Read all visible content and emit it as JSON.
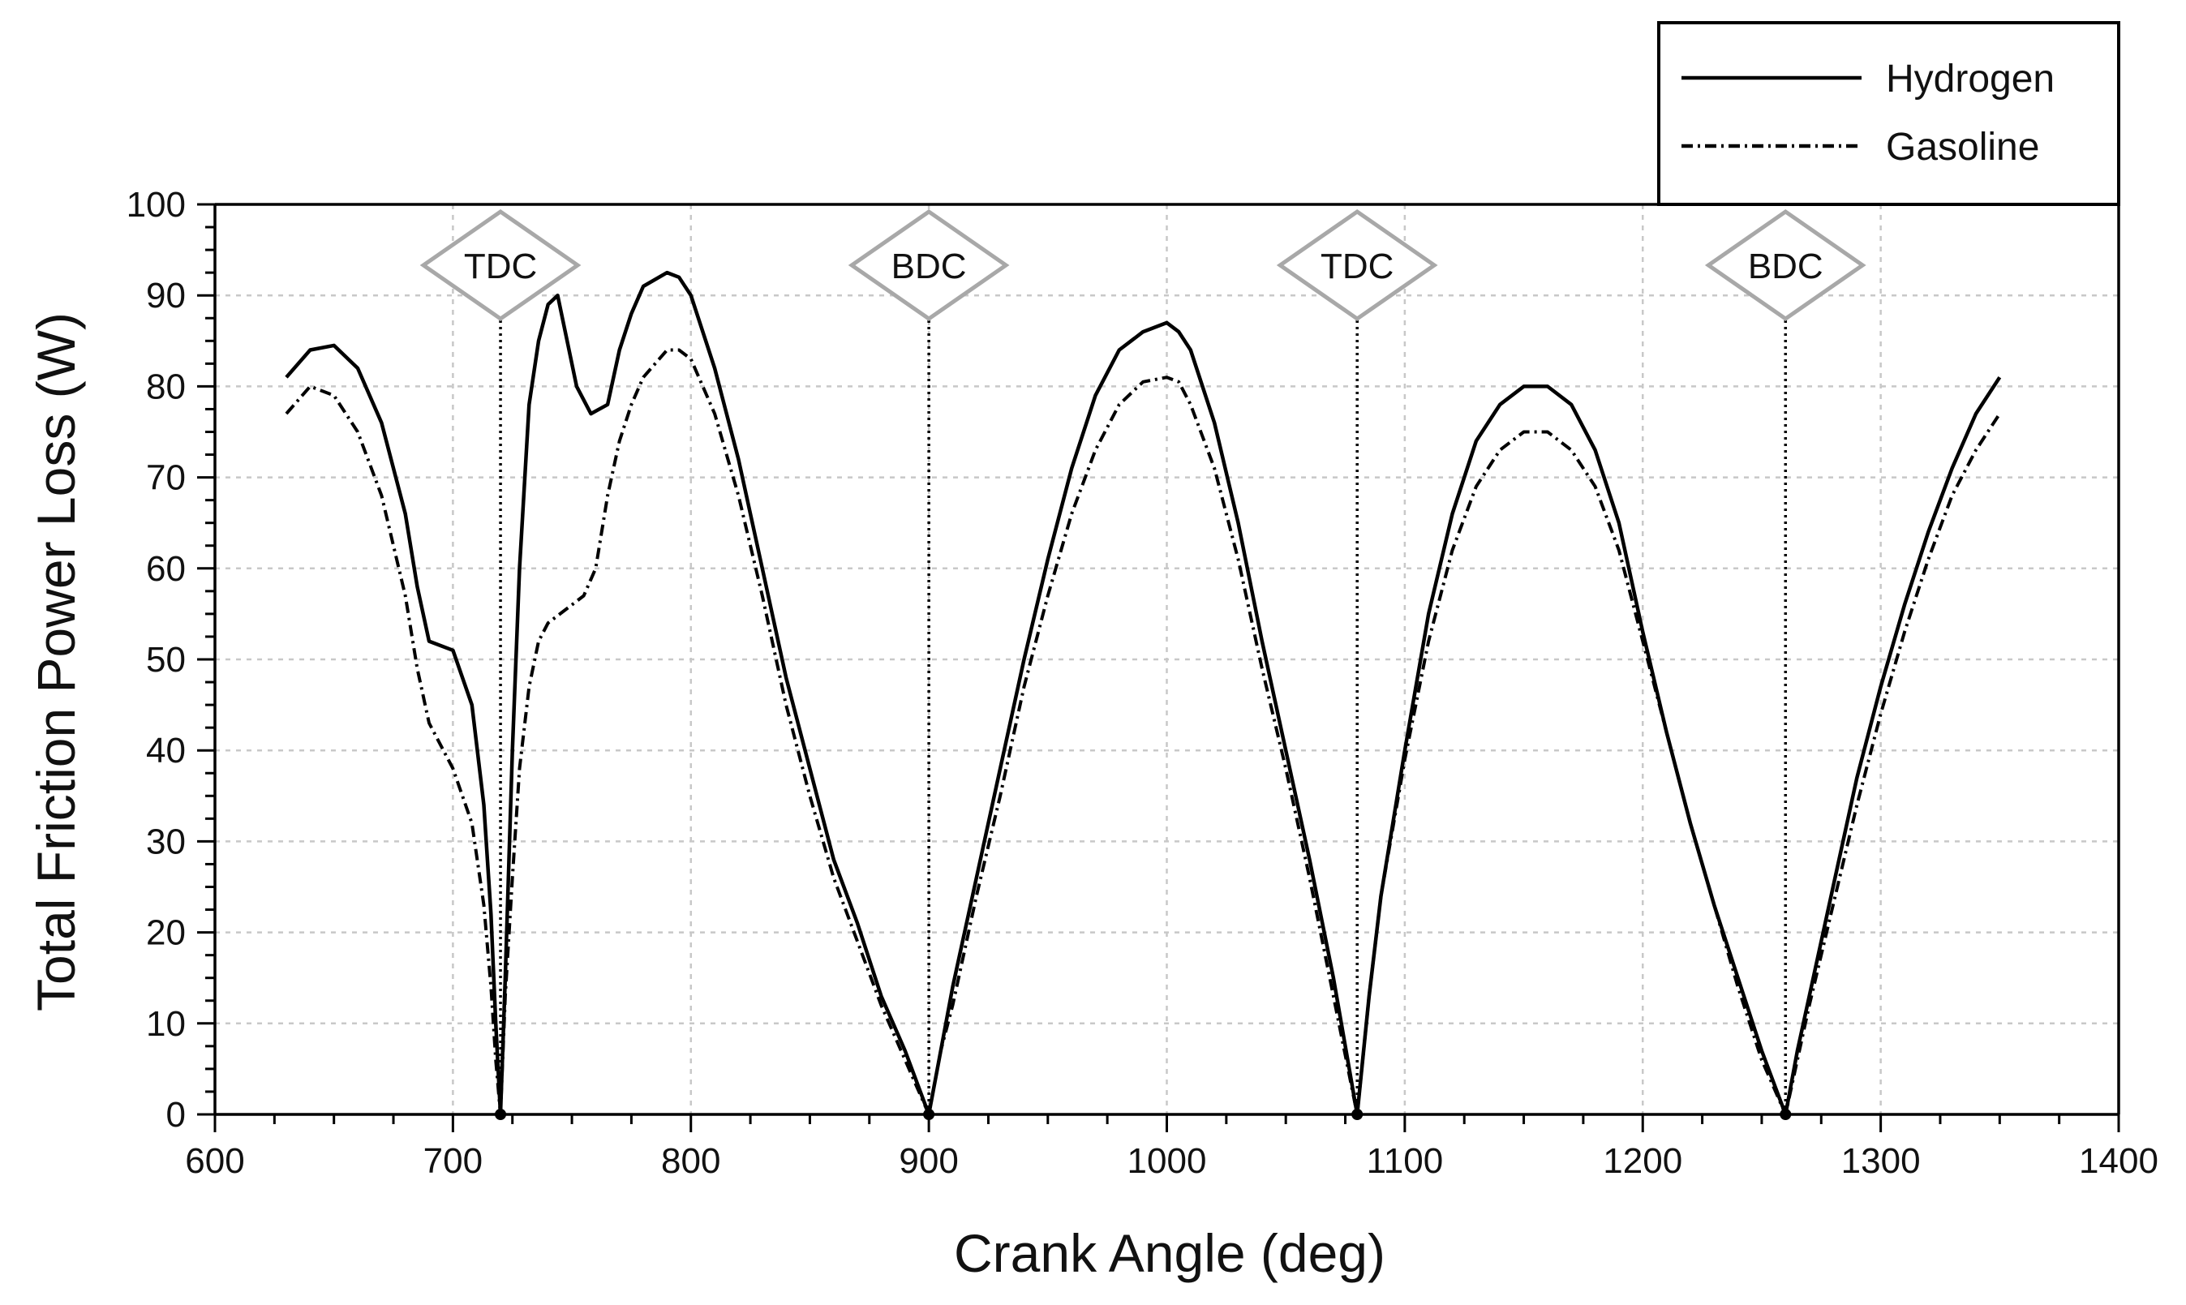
{
  "chart_data": {
    "type": "line",
    "title": "",
    "xlabel": "Crank Angle (deg)",
    "ylabel": "Total Friction Power Loss (W)",
    "xlim": [
      600,
      1400
    ],
    "ylim": [
      0,
      100
    ],
    "x_ticks": [
      "600",
      "700",
      "800",
      "900",
      "1000",
      "1100",
      "1200",
      "1300",
      "1400"
    ],
    "y_ticks": [
      "0",
      "10",
      "20",
      "30",
      "40",
      "50",
      "60",
      "70",
      "80",
      "90",
      "100"
    ],
    "grid": true,
    "legend": {
      "position": "top-right"
    },
    "markers": [
      {
        "label": "TDC",
        "x": 720
      },
      {
        "label": "BDC",
        "x": 900
      },
      {
        "label": "TDC",
        "x": 1080
      },
      {
        "label": "BDC",
        "x": 1260
      }
    ],
    "series": [
      {
        "name": "Hydrogen",
        "style": "solid",
        "color": "#000000",
        "x": [
          630,
          640,
          650,
          660,
          670,
          680,
          685,
          690,
          700,
          708,
          713,
          716,
          718,
          720,
          722,
          725,
          728,
          732,
          736,
          740,
          744,
          748,
          752,
          758,
          765,
          770,
          775,
          780,
          790,
          795,
          800,
          810,
          820,
          830,
          840,
          850,
          860,
          870,
          880,
          890,
          900,
          905,
          910,
          920,
          930,
          940,
          950,
          960,
          970,
          980,
          990,
          1000,
          1005,
          1010,
          1020,
          1030,
          1040,
          1050,
          1060,
          1070,
          1080,
          1085,
          1090,
          1100,
          1110,
          1120,
          1130,
          1140,
          1150,
          1160,
          1170,
          1180,
          1190,
          1200,
          1210,
          1220,
          1230,
          1240,
          1250,
          1260,
          1265,
          1270,
          1280,
          1290,
          1300,
          1310,
          1320,
          1330,
          1340,
          1350
        ],
        "values": [
          81,
          84,
          84.5,
          82,
          76,
          66,
          58,
          52,
          51,
          45,
          34,
          22,
          10,
          0,
          15,
          40,
          60,
          78,
          85,
          89,
          90,
          85,
          80,
          77,
          78,
          84,
          88,
          91,
          92.5,
          92,
          90,
          82,
          72,
          60,
          48,
          38,
          28,
          21,
          13,
          7,
          0,
          7,
          14,
          26,
          38,
          50,
          61,
          71,
          79,
          84,
          86,
          87,
          86,
          84,
          76,
          65,
          52,
          40,
          28,
          15,
          0,
          13,
          24,
          40,
          55,
          66,
          74,
          78,
          80,
          80,
          78,
          73,
          65,
          53,
          42,
          32,
          23,
          15,
          7,
          0,
          7,
          13,
          25,
          37,
          47,
          56,
          64,
          71,
          77,
          81
        ]
      },
      {
        "name": "Gasoline",
        "style": "dash-dot",
        "color": "#000000",
        "x": [
          630,
          640,
          650,
          660,
          670,
          680,
          685,
          690,
          700,
          708,
          713,
          716,
          718,
          720,
          722,
          725,
          728,
          732,
          736,
          740,
          745,
          750,
          755,
          760,
          765,
          770,
          775,
          780,
          790,
          795,
          800,
          810,
          820,
          830,
          840,
          850,
          860,
          870,
          880,
          890,
          900,
          905,
          910,
          920,
          930,
          940,
          950,
          960,
          970,
          980,
          990,
          1000,
          1005,
          1010,
          1020,
          1030,
          1040,
          1050,
          1060,
          1070,
          1080,
          1085,
          1090,
          1100,
          1110,
          1120,
          1130,
          1140,
          1150,
          1160,
          1170,
          1180,
          1190,
          1200,
          1210,
          1220,
          1230,
          1240,
          1250,
          1260,
          1265,
          1270,
          1280,
          1290,
          1300,
          1310,
          1320,
          1330,
          1340,
          1350
        ],
        "values": [
          77,
          80,
          79,
          75,
          68,
          57,
          49,
          43,
          38,
          32,
          23,
          14,
          6,
          0,
          13,
          26,
          38,
          47,
          52,
          54,
          55,
          56,
          57,
          60,
          68,
          74,
          78,
          81,
          84,
          84,
          83,
          77,
          68,
          57,
          45,
          35,
          26,
          19,
          12,
          6,
          0,
          7,
          12,
          24,
          35,
          47,
          57,
          66,
          73,
          78,
          80.5,
          81,
          80.5,
          78,
          71,
          61,
          49,
          38,
          26,
          13,
          0,
          13,
          24,
          39,
          52,
          62,
          69,
          73,
          75,
          75,
          73,
          69,
          62,
          52,
          42,
          32,
          23,
          14,
          6,
          0,
          6,
          12,
          23,
          34,
          44,
          53,
          61,
          68,
          73,
          77
        ]
      }
    ]
  }
}
